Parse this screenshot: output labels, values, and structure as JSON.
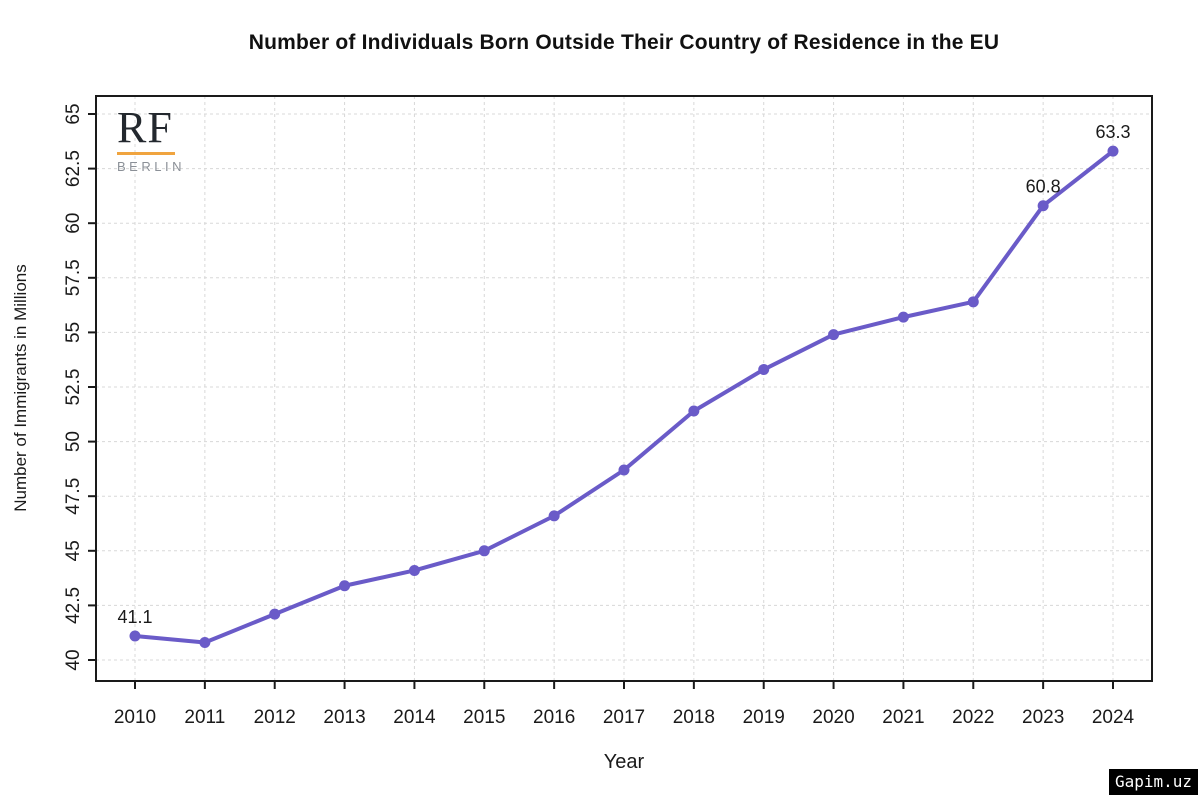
{
  "logo": {
    "text": "RF",
    "subtext": "BERLIN",
    "rule_color": "#F0A43F"
  },
  "watermark": {
    "text": "Gapim.uz"
  },
  "chart_data": {
    "type": "line",
    "title": "Number of Individuals Born Outside Their Country of Residence in the EU",
    "xlabel": "Year",
    "ylabel": "Number of Immigrants in Millions",
    "categories": [
      2010,
      2011,
      2012,
      2013,
      2014,
      2015,
      2016,
      2017,
      2018,
      2019,
      2020,
      2021,
      2022,
      2023,
      2024
    ],
    "values": [
      41.1,
      40.8,
      42.1,
      43.4,
      44.1,
      45.0,
      46.6,
      48.7,
      51.4,
      53.3,
      54.9,
      55.7,
      56.4,
      60.8,
      63.3
    ],
    "yticks": [
      "40",
      "42.5",
      "45",
      "47.5",
      "50",
      "52.5",
      "55",
      "57.5",
      "60",
      "62.5",
      "65"
    ],
    "ylim": [
      40,
      65
    ],
    "grid": "dashed-both-axes",
    "legend": "none",
    "line_color": "#6A5BC8",
    "marker": "filled-circle",
    "annotations": [
      {
        "year": 2010,
        "label": "41.1"
      },
      {
        "year": 2023,
        "label": "60.8"
      },
      {
        "year": 2024,
        "label": "63.3"
      }
    ]
  }
}
